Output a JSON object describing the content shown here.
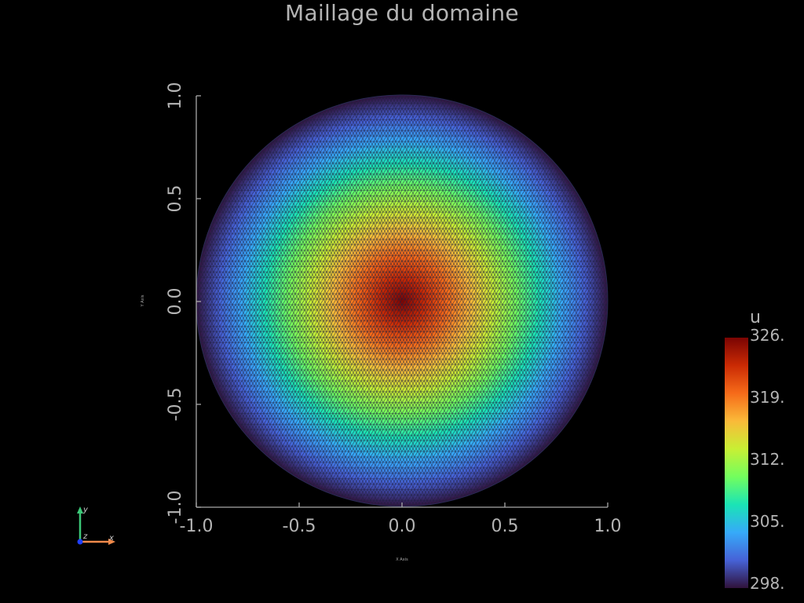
{
  "title": "Maillage du domaine",
  "axes": {
    "x_label": "X Axis",
    "y_label": "Y Axis",
    "x_ticks": [
      "-1.0",
      "-0.5",
      "0.0",
      "0.5",
      "1.0"
    ],
    "y_ticks": [
      "-1.0",
      "-0.5",
      "0.0",
      "0.5",
      "1.0"
    ],
    "x_range": [
      -1.0,
      1.0
    ],
    "y_range": [
      -1.0,
      1.0
    ]
  },
  "field": {
    "name": "u",
    "min": 298,
    "max": 326,
    "center": [
      0.0,
      0.0
    ],
    "radius": 1.0
  },
  "colorbar": {
    "title": "u",
    "labels": [
      "326.",
      "319.",
      "312.",
      "305.",
      "298."
    ],
    "colormap": [
      "#30123b",
      "#4662d7",
      "#36aaf9",
      "#1ae4b6",
      "#72fe5e",
      "#c8ef34",
      "#faba39",
      "#f66b19",
      "#ca2a04",
      "#7a0403"
    ]
  },
  "orientation": {
    "x": "x",
    "y": "y",
    "z": "z",
    "x_color": "#f08a4b",
    "y_color": "#3cc878",
    "z_color": "#1f3fff"
  },
  "mesh_edge_color": "#1e1e3c"
}
